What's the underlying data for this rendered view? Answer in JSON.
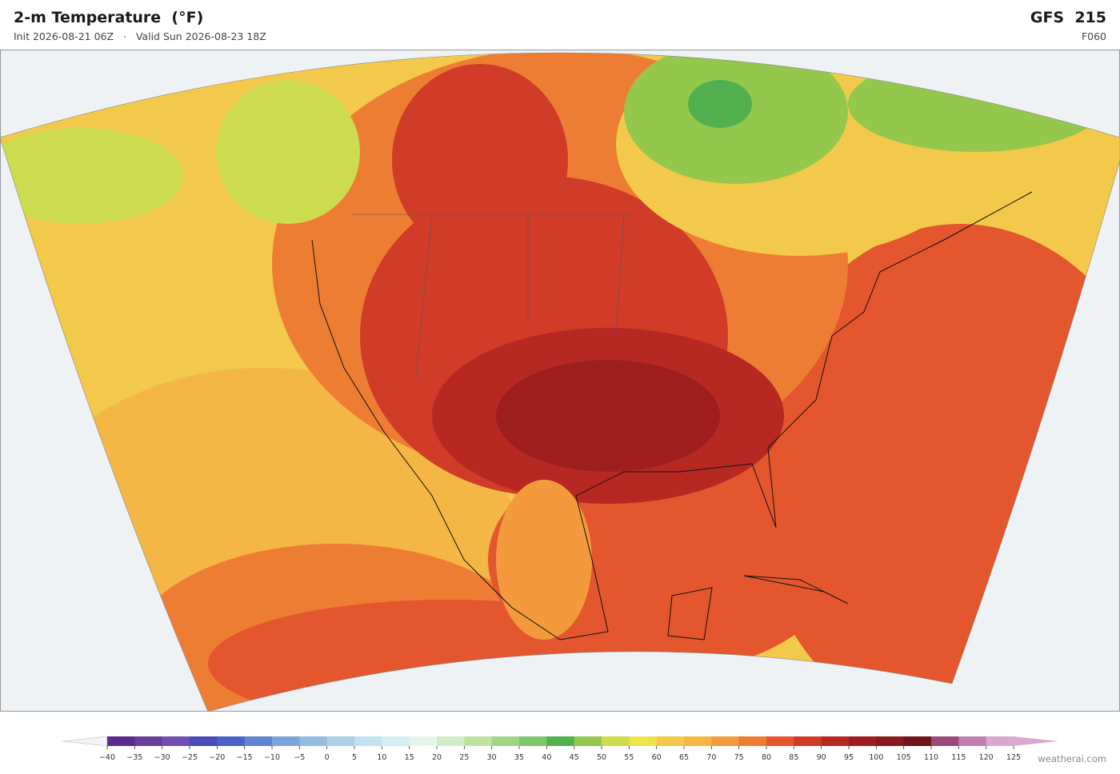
{
  "header": {
    "title": "2-m Temperature  (°F)",
    "subtitle": "Init 2026-08-21 06Z   ·   Valid Sun 2026-08-23 18Z",
    "model": "GFS  215",
    "forecast_hour": "F060"
  },
  "colorbar": {
    "range": [
      -40,
      125
    ],
    "ticks": [
      {
        "value": -40,
        "label": "−40"
      },
      {
        "value": -35,
        "label": "−35"
      },
      {
        "value": -30,
        "label": "−30"
      },
      {
        "value": -25,
        "label": "−25"
      },
      {
        "value": -20,
        "label": "−20"
      },
      {
        "value": -15,
        "label": "−15"
      },
      {
        "value": -10,
        "label": "−10"
      },
      {
        "value": -5,
        "label": "−5"
      },
      0,
      5,
      10,
      15,
      20,
      25,
      30,
      35,
      40,
      45,
      50,
      55,
      60,
      65,
      70,
      75,
      80,
      85,
      90,
      95,
      100,
      105,
      110,
      115,
      120,
      125
    ],
    "colors": [
      "#5b2a8c",
      "#6a3d9a",
      "#7150b0",
      "#4a4ab8",
      "#4c62c8",
      "#6285d0",
      "#7ea4dc",
      "#94bde2",
      "#abd0e8",
      "#c3e2ef",
      "#d6edf2",
      "#e6f5ec",
      "#d3ecc8",
      "#bde3a0",
      "#9fd583",
      "#7dc66b",
      "#52b04f",
      "#93c84d",
      "#cddc4e",
      "#ece448",
      "#f2c94a",
      "#f4b644",
      "#f29a3c",
      "#ee7d34",
      "#e4562d",
      "#d03c28",
      "#b82823",
      "#9e1e20",
      "#861a1c",
      "#6e161a",
      "#9c4a7a",
      "#c07fb0",
      "#d8a8d0"
    ],
    "extend_colors": [
      "#f4f4f6",
      "#d8a8d0"
    ]
  },
  "credit": "weatherai.com"
}
